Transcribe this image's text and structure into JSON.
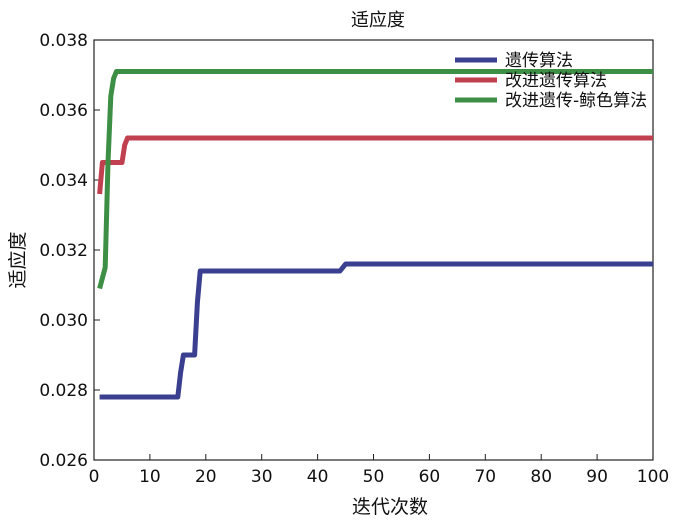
{
  "chart_data": {
    "type": "line",
    "title": "适应度",
    "xlabel": "迭代次数",
    "ylabel": "适应度",
    "xlim": [
      0,
      100
    ],
    "ylim": [
      0.026,
      0.038
    ],
    "xticks": [
      0,
      10,
      20,
      30,
      40,
      50,
      60,
      70,
      80,
      90,
      100
    ],
    "yticks": [
      "0.026",
      "0.028",
      "0.030",
      "0.032",
      "0.034",
      "0.036",
      "0.038"
    ],
    "grid": false,
    "legend": "top-right",
    "series": [
      {
        "name": "遗传算法",
        "color": "#3b3f8f",
        "x": [
          1,
          15,
          15.5,
          16,
          18,
          18.5,
          19,
          44,
          45,
          100
        ],
        "y": [
          0.0278,
          0.0278,
          0.0285,
          0.029,
          0.029,
          0.0305,
          0.0314,
          0.0314,
          0.0316,
          0.0316
        ]
      },
      {
        "name": "改进遗传算法",
        "color": "#c0404f",
        "x": [
          1,
          1.5,
          2,
          5,
          5.5,
          6,
          100
        ],
        "y": [
          0.0336,
          0.0345,
          0.0345,
          0.0345,
          0.035,
          0.0352,
          0.0352
        ]
      },
      {
        "name": "改进遗传-鲸色算法",
        "color": "#3d8f45",
        "x": [
          1,
          2,
          2.5,
          3,
          3.5,
          4,
          100
        ],
        "y": [
          0.0309,
          0.0315,
          0.0345,
          0.0364,
          0.0369,
          0.0371,
          0.0371
        ]
      }
    ]
  }
}
